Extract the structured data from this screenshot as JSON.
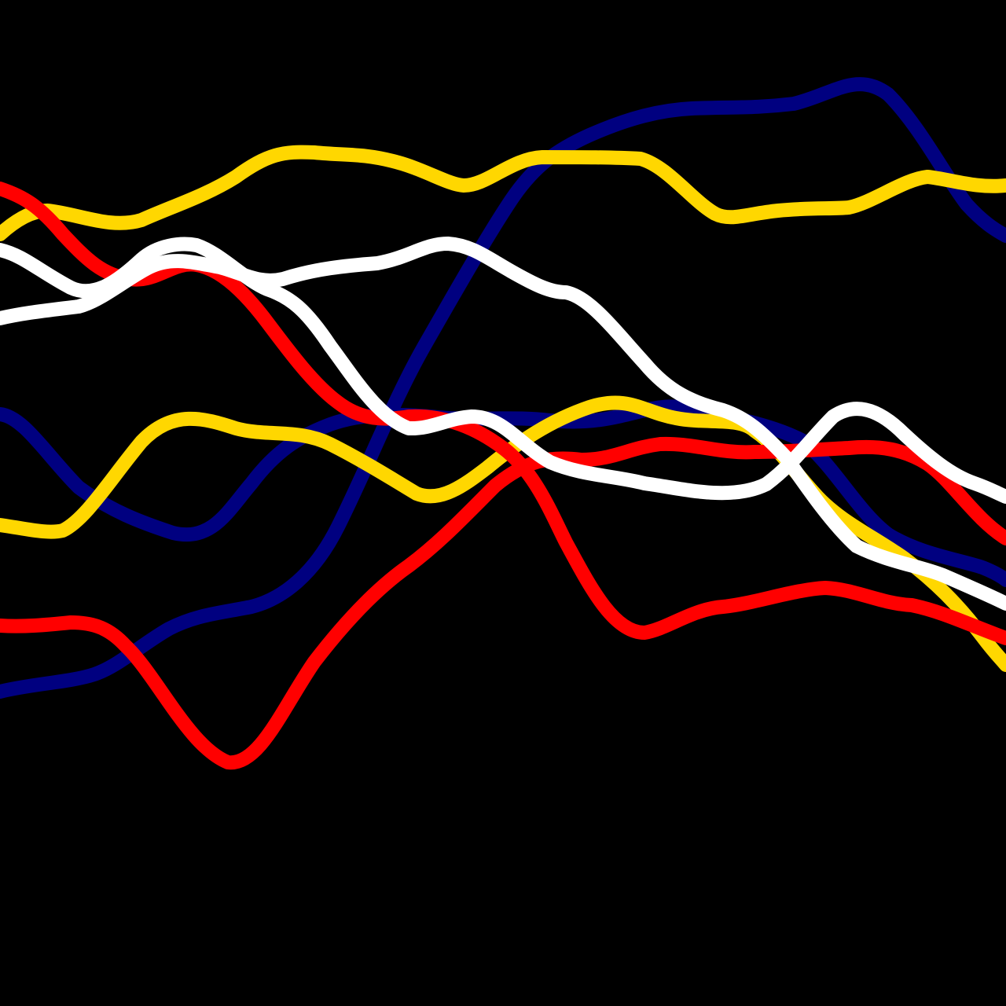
{
  "background": "#000000",
  "colors": {
    "navy": "#000080",
    "gold": "#FFD700",
    "red": "#FF0000",
    "white": "#FFFFFF"
  },
  "curves": [
    {
      "name": "navy-line-a",
      "color": "#000080"
    },
    {
      "name": "navy-line-b",
      "color": "#000080"
    },
    {
      "name": "gold-line-a",
      "color": "#FFD700"
    },
    {
      "name": "gold-line-b",
      "color": "#FFD700"
    },
    {
      "name": "red-line-a",
      "color": "#FF0000"
    },
    {
      "name": "red-line-b",
      "color": "#FF0000"
    },
    {
      "name": "white-line-a",
      "color": "#FFFFFF"
    },
    {
      "name": "white-line-b",
      "color": "#FFFFFF"
    }
  ]
}
